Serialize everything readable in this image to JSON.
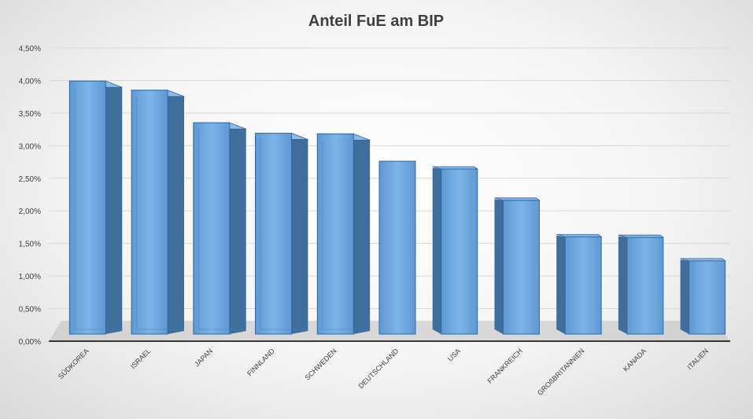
{
  "chart_data": {
    "type": "bar",
    "title": "Anteil FuE am BIP",
    "categories": [
      "SÜDKOREA",
      "ISRAEL",
      "JAPAN",
      "FINNLAND",
      "SCHWEDEN",
      "DEUTSCHLAND",
      "USA",
      "FRANKREICH",
      "GROßBRITANNIEN",
      "KANADA",
      "ITALIEN"
    ],
    "values": [
      4.04,
      3.9,
      3.4,
      3.24,
      3.23,
      2.81,
      2.69,
      2.21,
      1.65,
      1.64,
      1.28
    ],
    "yticks": [
      "0,00%",
      "0,50%",
      "1,00%",
      "1,50%",
      "2,00%",
      "2,50%",
      "3,00%",
      "3,50%",
      "4,00%",
      "4,50%"
    ],
    "ylim": [
      0,
      4.5
    ],
    "grid": true,
    "style": "3d-column",
    "colors": {
      "bar_front": "#6fa8e0",
      "bar_side": "#3f6d9c",
      "bar_top": "#8fbbe8",
      "grid": "#d9d9d9",
      "floor": "#bfbfbf"
    }
  }
}
